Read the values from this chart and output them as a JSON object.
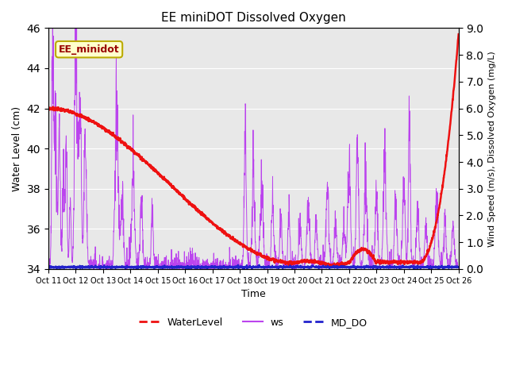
{
  "title": "EE miniDOT Dissolved Oxygen",
  "xlabel": "Time",
  "ylabel_left": "Water Level (cm)",
  "ylabel_right": "Wind Speed (m/s), Dissolved Oxygen (mg/L)",
  "ylim_left": [
    34,
    46
  ],
  "ylim_right": [
    0.0,
    9.0
  ],
  "yticks_left": [
    34,
    36,
    38,
    40,
    42,
    44,
    46
  ],
  "yticks_right": [
    0.0,
    1.0,
    2.0,
    3.0,
    4.0,
    5.0,
    6.0,
    7.0,
    8.0,
    9.0
  ],
  "x_tick_labels": [
    "Oct 11",
    "Oct 12",
    "Oct 13",
    "Oct 14",
    "Oct 15",
    "Oct 16",
    "Oct 17",
    "Oct 18",
    "Oct 19",
    "Oct 20",
    "Oct 21",
    "Oct 22",
    "Oct 23",
    "Oct 24",
    "Oct 25",
    "Oct 26"
  ],
  "annotation_text": "EE_minidot",
  "annotation_bbox_facecolor": "#ffffcc",
  "annotation_bbox_edgecolor": "#bbaa00",
  "wl_color": "#ee1111",
  "ws_color": "#bb44ee",
  "do_color": "#2222cc",
  "legend_labels": [
    "WaterLevel",
    "ws",
    "MD_DO"
  ],
  "bg_color": "#e8e8e8",
  "grid_color": "#ffffff",
  "n_days": 15,
  "n_pts": 2000
}
